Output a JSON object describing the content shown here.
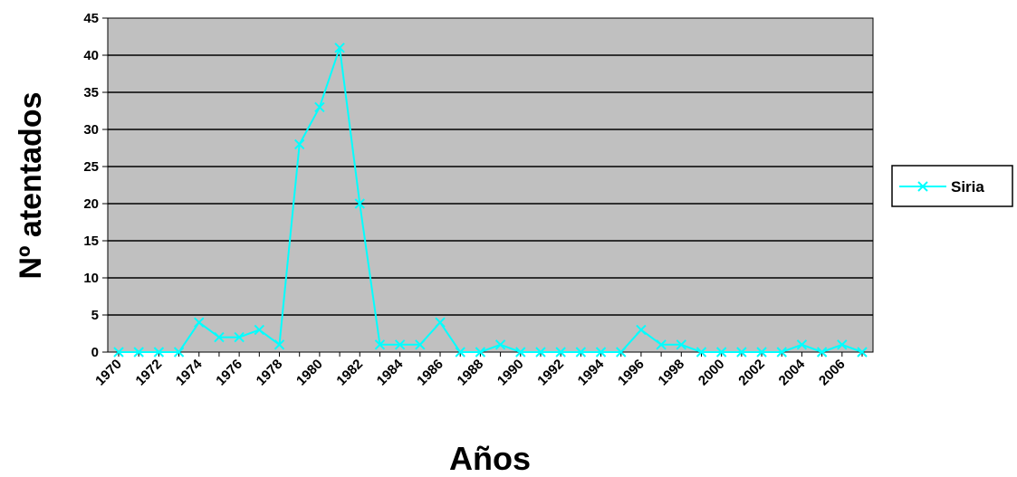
{
  "chart_data": {
    "type": "line",
    "title": "",
    "xlabel": "Años",
    "ylabel": "Nº atentados",
    "ylim": [
      0,
      45
    ],
    "yticks": [
      0,
      5,
      10,
      15,
      20,
      25,
      30,
      35,
      40,
      45
    ],
    "grid": "horizontal",
    "legend_position": "right",
    "colors": {
      "plot_background": "#c0c0c0",
      "series": "#00ffff",
      "grid": "#000000"
    },
    "x": [
      1970,
      1971,
      1972,
      1973,
      1974,
      1975,
      1976,
      1977,
      1978,
      1979,
      1980,
      1981,
      1982,
      1983,
      1984,
      1985,
      1986,
      1987,
      1988,
      1989,
      1990,
      1991,
      1992,
      1993,
      1994,
      1995,
      1996,
      1997,
      1998,
      1999,
      2000,
      2001,
      2002,
      2003,
      2004,
      2005,
      2006,
      2007
    ],
    "xtick_labels": [
      "1970",
      "1972",
      "1974",
      "1976",
      "1978",
      "1980",
      "1982",
      "1984",
      "1986",
      "1988",
      "1990",
      "1992",
      "1994",
      "1996",
      "1998",
      "2000",
      "2002",
      "2004",
      "2006"
    ],
    "series": [
      {
        "name": "Siria",
        "marker": "x",
        "values": [
          0,
          0,
          0,
          0,
          4,
          2,
          2,
          3,
          1,
          28,
          33,
          41,
          20,
          1,
          1,
          1,
          4,
          0,
          0,
          1,
          0,
          0,
          0,
          0,
          0,
          0,
          3,
          1,
          1,
          0,
          0,
          0,
          0,
          0,
          1,
          0,
          1,
          0
        ]
      }
    ]
  }
}
